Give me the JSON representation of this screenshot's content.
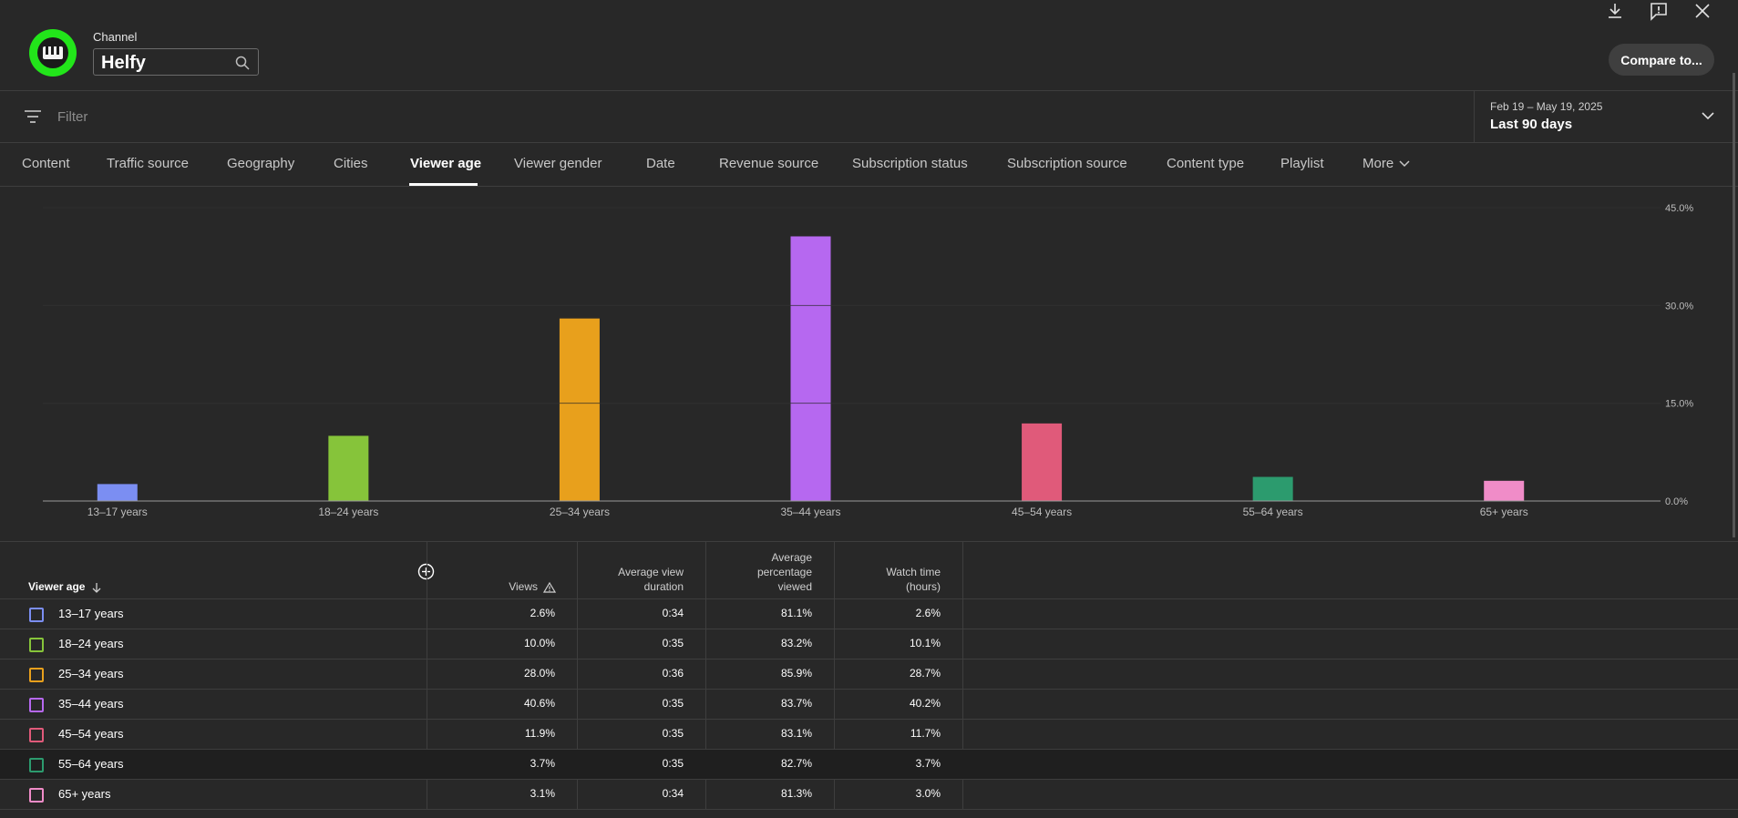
{
  "header": {
    "channel_label": "Channel",
    "channel_name": "Helfy",
    "compare_label": "Compare to..."
  },
  "filter": {
    "placeholder": "Filter",
    "date_range": "Feb 19 – May 19, 2025",
    "period": "Last 90 days"
  },
  "tabs": [
    {
      "label": "Content"
    },
    {
      "label": "Traffic source"
    },
    {
      "label": "Geography"
    },
    {
      "label": "Cities"
    },
    {
      "label": "Viewer age"
    },
    {
      "label": "Viewer gender"
    },
    {
      "label": "Date"
    },
    {
      "label": "Revenue source"
    },
    {
      "label": "Subscription status"
    },
    {
      "label": "Subscription source"
    },
    {
      "label": "Content type"
    },
    {
      "label": "Playlist"
    },
    {
      "label": "More"
    }
  ],
  "active_tab": "Viewer age",
  "chart_data": {
    "type": "bar",
    "categories": [
      "13–17 years",
      "18–24 years",
      "25–34 years",
      "35–44 years",
      "45–54 years",
      "55–64 years",
      "65+ years"
    ],
    "values": [
      2.6,
      10.0,
      28.0,
      40.6,
      11.9,
      3.7,
      3.1
    ],
    "colors": [
      "#7b8ef2",
      "#86c43a",
      "#e8a01c",
      "#b668f0",
      "#e05a7a",
      "#2c9b6e",
      "#f08cc8"
    ],
    "yticks": [
      "0.0%",
      "15.0%",
      "30.0%",
      "45.0%"
    ],
    "ylim": [
      0,
      45
    ],
    "y_axis_position": "right",
    "grid": true
  },
  "table": {
    "headers": {
      "viewer_age": "Viewer age",
      "views": "Views",
      "avg_duration_1": "Average view",
      "avg_duration_2": "duration",
      "avg_pct_1": "Average",
      "avg_pct_2": "percentage",
      "avg_pct_3": "viewed",
      "watch_1": "Watch time",
      "watch_2": "(hours)"
    },
    "rows": [
      {
        "label": "13–17 years",
        "views": "2.6%",
        "duration": "0:34",
        "pct": "81.1%",
        "watch": "2.6%",
        "color": "#7b8ef2"
      },
      {
        "label": "18–24 years",
        "views": "10.0%",
        "duration": "0:35",
        "pct": "83.2%",
        "watch": "10.1%",
        "color": "#86c43a"
      },
      {
        "label": "25–34 years",
        "views": "28.0%",
        "duration": "0:36",
        "pct": "85.9%",
        "watch": "28.7%",
        "color": "#e8a01c"
      },
      {
        "label": "35–44 years",
        "views": "40.6%",
        "duration": "0:35",
        "pct": "83.7%",
        "watch": "40.2%",
        "color": "#b668f0"
      },
      {
        "label": "45–54 years",
        "views": "11.9%",
        "duration": "0:35",
        "pct": "83.1%",
        "watch": "11.7%",
        "color": "#e05a7a"
      },
      {
        "label": "55–64 years",
        "views": "3.7%",
        "duration": "0:35",
        "pct": "82.7%",
        "watch": "3.7%",
        "color": "#2c9b6e"
      },
      {
        "label": "65+ years",
        "views": "3.1%",
        "duration": "0:34",
        "pct": "81.3%",
        "watch": "3.0%",
        "color": "#f08cc8"
      }
    ]
  },
  "icons": {
    "download": "download-icon",
    "feedback": "feedback-icon",
    "close": "close-icon",
    "search": "search-icon",
    "filter": "filter-icon",
    "chevron": "chevron-down-icon",
    "add": "add-circle-icon",
    "warning": "warning-icon",
    "sort": "sort-down-icon"
  }
}
